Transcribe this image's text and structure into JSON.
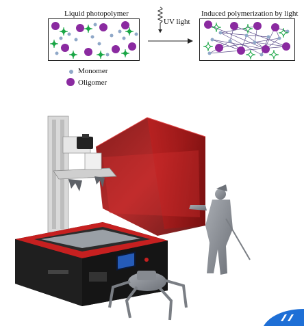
{
  "diagram": {
    "left_panel": {
      "title": "Liquid photopolymer"
    },
    "right_panel": {
      "title": "Induced polymerization by light"
    },
    "arrow": {
      "label": "UV light"
    },
    "legend": [
      {
        "label": "Monomer",
        "color": "#8fa8c8",
        "icon": "small-blue-dot"
      },
      {
        "label": "Oligomer",
        "color": "#8a2aa0",
        "icon": "large-purple-dot"
      }
    ],
    "colors": {
      "monomer": "#8fa8c8",
      "oligomer": "#8a2aa0",
      "photoinitiator": "#1aa646",
      "printer_hood": "#b01818",
      "printer_base": "#1a1a1a",
      "printer_accent": "#c62020",
      "resin_model": "#8c9096",
      "edge_logo": "#1e6fd6"
    },
    "printer": {
      "illustration": "SLA resin 3D printer with red UV cover and printed grey figures",
      "screen_icon": "printer-screen-icon"
    }
  }
}
